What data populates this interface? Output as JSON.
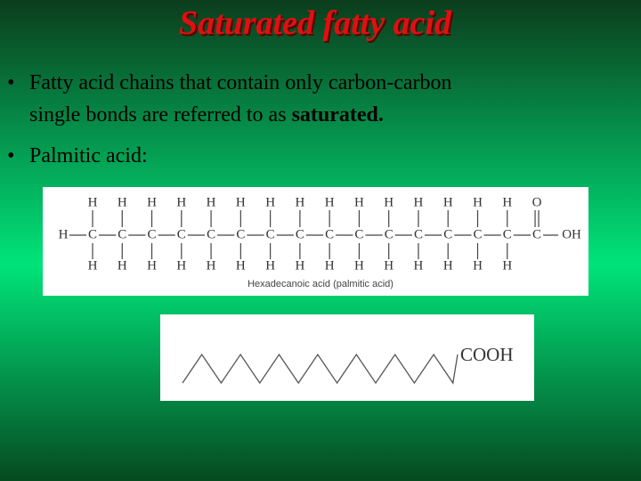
{
  "title": "Saturated fatty acid",
  "bullets": [
    {
      "text": "Fatty acid chains that contain only carbon-carbon single bonds are referred to as ",
      "emphasis": "saturated."
    },
    {
      "text": "Palmitic acid:"
    }
  ],
  "structure": {
    "left": "H",
    "top": [
      "H",
      "H",
      "H",
      "H",
      "H",
      "H",
      "H",
      "H",
      "H",
      "H",
      "H",
      "H",
      "H",
      "H",
      "H",
      "O"
    ],
    "chain": [
      "C",
      "C",
      "C",
      "C",
      "C",
      "C",
      "C",
      "C",
      "C",
      "C",
      "C",
      "C",
      "C",
      "C",
      "C",
      "C"
    ],
    "bottom": [
      "H",
      "H",
      "H",
      "H",
      "H",
      "H",
      "H",
      "H",
      "H",
      "H",
      "H",
      "H",
      "H",
      "H",
      "H"
    ],
    "right": "OH",
    "caption": "Hexadecanoic acid (palmitic acid)"
  },
  "skeletal": {
    "label": "COOH"
  }
}
